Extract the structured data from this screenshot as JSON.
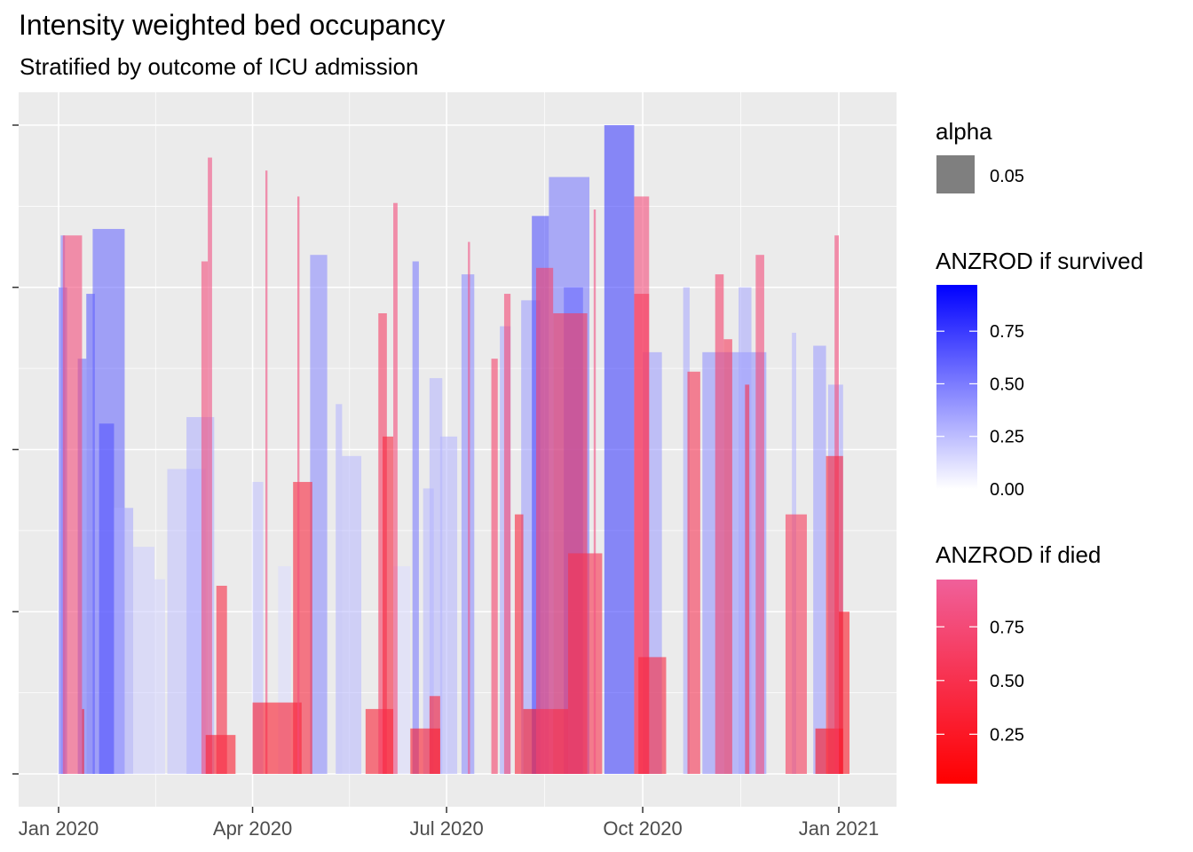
{
  "chart_data": {
    "type": "bar",
    "title": "Intensity weighted bed occupancy",
    "subtitle": "Stratified by outcome of ICU admission",
    "x_axis": {
      "ticks": [
        "Jan 2020",
        "Apr 2020",
        "Jul 2020",
        "Oct 2020",
        "Jan 2021"
      ],
      "tick_dates": [
        "2020-01-01",
        "2020-04-01",
        "2020-07-01",
        "2020-10-01",
        "2021-01-01"
      ],
      "range": [
        "2019-12-20",
        "2021-01-30"
      ]
    },
    "y_axis": {
      "ticks": [
        "",
        "",
        "",
        "",
        ""
      ],
      "range": [
        0,
        1
      ]
    },
    "grid": true,
    "legend_position": "right",
    "legends": {
      "alpha": {
        "title": "alpha",
        "entries": [
          "0.05"
        ],
        "swatch_color": "#7f7f7f"
      },
      "survived": {
        "title": "ANZROD if survived",
        "ticks": [
          "0.75",
          "0.50",
          "0.25",
          "0.00"
        ],
        "tick_values": [
          0.75,
          0.5,
          0.25,
          0.0
        ],
        "range": [
          0,
          0.97
        ],
        "colors": [
          "#ffffff",
          "#0000ff"
        ]
      },
      "died": {
        "title": "ANZROD if died",
        "ticks": [
          "0.75",
          "0.50",
          "0.25"
        ],
        "tick_values": [
          0.75,
          0.5,
          0.25
        ],
        "range": [
          0.02,
          0.97
        ],
        "colors": [
          "#ff0000",
          "#f0609a"
        ]
      }
    },
    "series": [
      {
        "outcome": "survived",
        "bars": [
          {
            "start": "2020-01-01",
            "end": "2020-01-05",
            "value": 0.75,
            "anzrod": 0.55
          },
          {
            "start": "2020-01-02",
            "end": "2020-01-04",
            "value": 0.83,
            "anzrod": 0.5
          },
          {
            "start": "2020-01-10",
            "end": "2020-01-14",
            "value": 0.64,
            "anzrod": 0.6
          },
          {
            "start": "2020-01-14",
            "end": "2020-01-18",
            "value": 0.74,
            "anzrod": 0.68
          },
          {
            "start": "2020-01-17",
            "end": "2020-02-01",
            "value": 0.84,
            "anzrod": 0.62
          },
          {
            "start": "2020-01-20",
            "end": "2020-01-27",
            "value": 0.54,
            "anzrod": 0.7
          },
          {
            "start": "2020-01-27",
            "end": "2020-02-05",
            "value": 0.41,
            "anzrod": 0.35
          },
          {
            "start": "2020-02-05",
            "end": "2020-02-15",
            "value": 0.35,
            "anzrod": 0.2
          },
          {
            "start": "2020-02-15",
            "end": "2020-02-20",
            "value": 0.3,
            "anzrod": 0.18
          },
          {
            "start": "2020-02-21",
            "end": "2020-03-10",
            "value": 0.47,
            "anzrod": 0.25
          },
          {
            "start": "2020-03-01",
            "end": "2020-03-14",
            "value": 0.55,
            "anzrod": 0.32
          },
          {
            "start": "2020-04-01",
            "end": "2020-04-06",
            "value": 0.45,
            "anzrod": 0.25
          },
          {
            "start": "2020-04-13",
            "end": "2020-04-19",
            "value": 0.32,
            "anzrod": 0.14
          },
          {
            "start": "2020-04-28",
            "end": "2020-05-06",
            "value": 0.8,
            "anzrod": 0.48
          },
          {
            "start": "2020-05-10",
            "end": "2020-05-13",
            "value": 0.57,
            "anzrod": 0.3
          },
          {
            "start": "2020-05-13",
            "end": "2020-05-22",
            "value": 0.49,
            "anzrod": 0.28
          },
          {
            "start": "2020-06-06",
            "end": "2020-06-14",
            "value": 0.32,
            "anzrod": 0.14
          },
          {
            "start": "2020-06-15",
            "end": "2020-06-18",
            "value": 0.79,
            "anzrod": 0.55
          },
          {
            "start": "2020-06-20",
            "end": "2020-06-25",
            "value": 0.44,
            "anzrod": 0.28
          },
          {
            "start": "2020-06-23",
            "end": "2020-06-29",
            "value": 0.61,
            "anzrod": 0.3
          },
          {
            "start": "2020-06-28",
            "end": "2020-07-06",
            "value": 0.52,
            "anzrod": 0.3
          },
          {
            "start": "2020-07-08",
            "end": "2020-07-14",
            "value": 0.77,
            "anzrod": 0.48
          },
          {
            "start": "2020-07-26",
            "end": "2020-07-31",
            "value": 0.69,
            "anzrod": 0.35
          },
          {
            "start": "2020-08-05",
            "end": "2020-08-14",
            "value": 0.73,
            "anzrod": 0.4
          },
          {
            "start": "2020-08-10",
            "end": "2020-08-18",
            "value": 0.86,
            "anzrod": 0.72
          },
          {
            "start": "2020-08-18",
            "end": "2020-09-06",
            "value": 0.92,
            "anzrod": 0.55
          },
          {
            "start": "2020-08-25",
            "end": "2020-09-03",
            "value": 0.75,
            "anzrod": 0.6
          },
          {
            "start": "2020-09-13",
            "end": "2020-09-27",
            "value": 1.0,
            "anzrod": 0.8
          },
          {
            "start": "2020-10-01",
            "end": "2020-10-10",
            "value": 0.65,
            "anzrod": 0.4
          },
          {
            "start": "2020-10-20",
            "end": "2020-10-23",
            "value": 0.75,
            "anzrod": 0.35
          },
          {
            "start": "2020-10-29",
            "end": "2020-11-28",
            "value": 0.65,
            "anzrod": 0.45
          },
          {
            "start": "2020-11-15",
            "end": "2020-11-21",
            "value": 0.75,
            "anzrod": 0.35
          },
          {
            "start": "2020-12-10",
            "end": "2020-12-12",
            "value": 0.68,
            "anzrod": 0.3
          },
          {
            "start": "2020-12-20",
            "end": "2020-12-26",
            "value": 0.66,
            "anzrod": 0.4
          },
          {
            "start": "2020-12-27",
            "end": "2021-01-03",
            "value": 0.6,
            "anzrod": 0.35
          }
        ]
      },
      {
        "outcome": "died",
        "bars": [
          {
            "start": "2020-01-03",
            "end": "2020-01-12",
            "value": 0.83,
            "anzrod": 0.8
          },
          {
            "start": "2020-01-12",
            "end": "2020-01-13",
            "value": 0.1,
            "anzrod": 0.3
          },
          {
            "start": "2020-03-08",
            "end": "2020-03-11",
            "value": 0.79,
            "anzrod": 0.8
          },
          {
            "start": "2020-03-11",
            "end": "2020-03-13",
            "value": 0.95,
            "anzrod": 0.85
          },
          {
            "start": "2020-03-10",
            "end": "2020-03-24",
            "value": 0.06,
            "anzrod": 0.3
          },
          {
            "start": "2020-03-15",
            "end": "2020-03-20",
            "value": 0.29,
            "anzrod": 0.45
          },
          {
            "start": "2020-04-07",
            "end": "2020-04-08",
            "value": 0.93,
            "anzrod": 0.85
          },
          {
            "start": "2020-04-01",
            "end": "2020-04-24",
            "value": 0.11,
            "anzrod": 0.3
          },
          {
            "start": "2020-04-20",
            "end": "2020-04-29",
            "value": 0.45,
            "anzrod": 0.4
          },
          {
            "start": "2020-04-22",
            "end": "2020-04-23",
            "value": 0.89,
            "anzrod": 0.8
          },
          {
            "start": "2020-05-24",
            "end": "2020-06-06",
            "value": 0.1,
            "anzrod": 0.35
          },
          {
            "start": "2020-05-30",
            "end": "2020-06-03",
            "value": 0.71,
            "anzrod": 0.65
          },
          {
            "start": "2020-06-01",
            "end": "2020-06-06",
            "value": 0.52,
            "anzrod": 0.4
          },
          {
            "start": "2020-06-06",
            "end": "2020-06-08",
            "value": 0.88,
            "anzrod": 0.8
          },
          {
            "start": "2020-06-14",
            "end": "2020-06-28",
            "value": 0.07,
            "anzrod": 0.3
          },
          {
            "start": "2020-06-23",
            "end": "2020-06-28",
            "value": 0.12,
            "anzrod": 0.35
          },
          {
            "start": "2020-07-11",
            "end": "2020-07-12",
            "value": 0.82,
            "anzrod": 0.85
          },
          {
            "start": "2020-07-22",
            "end": "2020-07-25",
            "value": 0.64,
            "anzrod": 0.7
          },
          {
            "start": "2020-07-28",
            "end": "2020-07-31",
            "value": 0.74,
            "anzrod": 0.75
          },
          {
            "start": "2020-08-02",
            "end": "2020-08-06",
            "value": 0.4,
            "anzrod": 0.4
          },
          {
            "start": "2020-08-06",
            "end": "2020-08-27",
            "value": 0.1,
            "anzrod": 0.25
          },
          {
            "start": "2020-08-12",
            "end": "2020-08-20",
            "value": 0.78,
            "anzrod": 0.7
          },
          {
            "start": "2020-08-20",
            "end": "2020-09-05",
            "value": 0.71,
            "anzrod": 0.6
          },
          {
            "start": "2020-08-27",
            "end": "2020-09-12",
            "value": 0.34,
            "anzrod": 0.5
          },
          {
            "start": "2020-09-08",
            "end": "2020-09-09",
            "value": 0.87,
            "anzrod": 0.85
          },
          {
            "start": "2020-09-27",
            "end": "2020-10-04",
            "value": 0.89,
            "anzrod": 0.8
          },
          {
            "start": "2020-09-27",
            "end": "2020-10-04",
            "value": 0.74,
            "anzrod": 0.6
          },
          {
            "start": "2020-09-29",
            "end": "2020-10-12",
            "value": 0.18,
            "anzrod": 0.4
          },
          {
            "start": "2020-10-22",
            "end": "2020-10-28",
            "value": 0.62,
            "anzrod": 0.55
          },
          {
            "start": "2020-11-04",
            "end": "2020-11-08",
            "value": 0.77,
            "anzrod": 0.7
          },
          {
            "start": "2020-11-08",
            "end": "2020-11-12",
            "value": 0.67,
            "anzrod": 0.6
          },
          {
            "start": "2020-11-18",
            "end": "2020-11-20",
            "value": 0.6,
            "anzrod": 0.5
          },
          {
            "start": "2020-11-23",
            "end": "2020-11-27",
            "value": 0.8,
            "anzrod": 0.8
          },
          {
            "start": "2020-12-07",
            "end": "2020-12-17",
            "value": 0.4,
            "anzrod": 0.6
          },
          {
            "start": "2020-12-21",
            "end": "2021-01-03",
            "value": 0.07,
            "anzrod": 0.2
          },
          {
            "start": "2020-12-30",
            "end": "2021-01-01",
            "value": 0.83,
            "anzrod": 0.8
          },
          {
            "start": "2020-12-26",
            "end": "2021-01-03",
            "value": 0.49,
            "anzrod": 0.4
          },
          {
            "start": "2021-01-01",
            "end": "2021-01-06",
            "value": 0.25,
            "anzrod": 0.25
          }
        ]
      }
    ]
  }
}
